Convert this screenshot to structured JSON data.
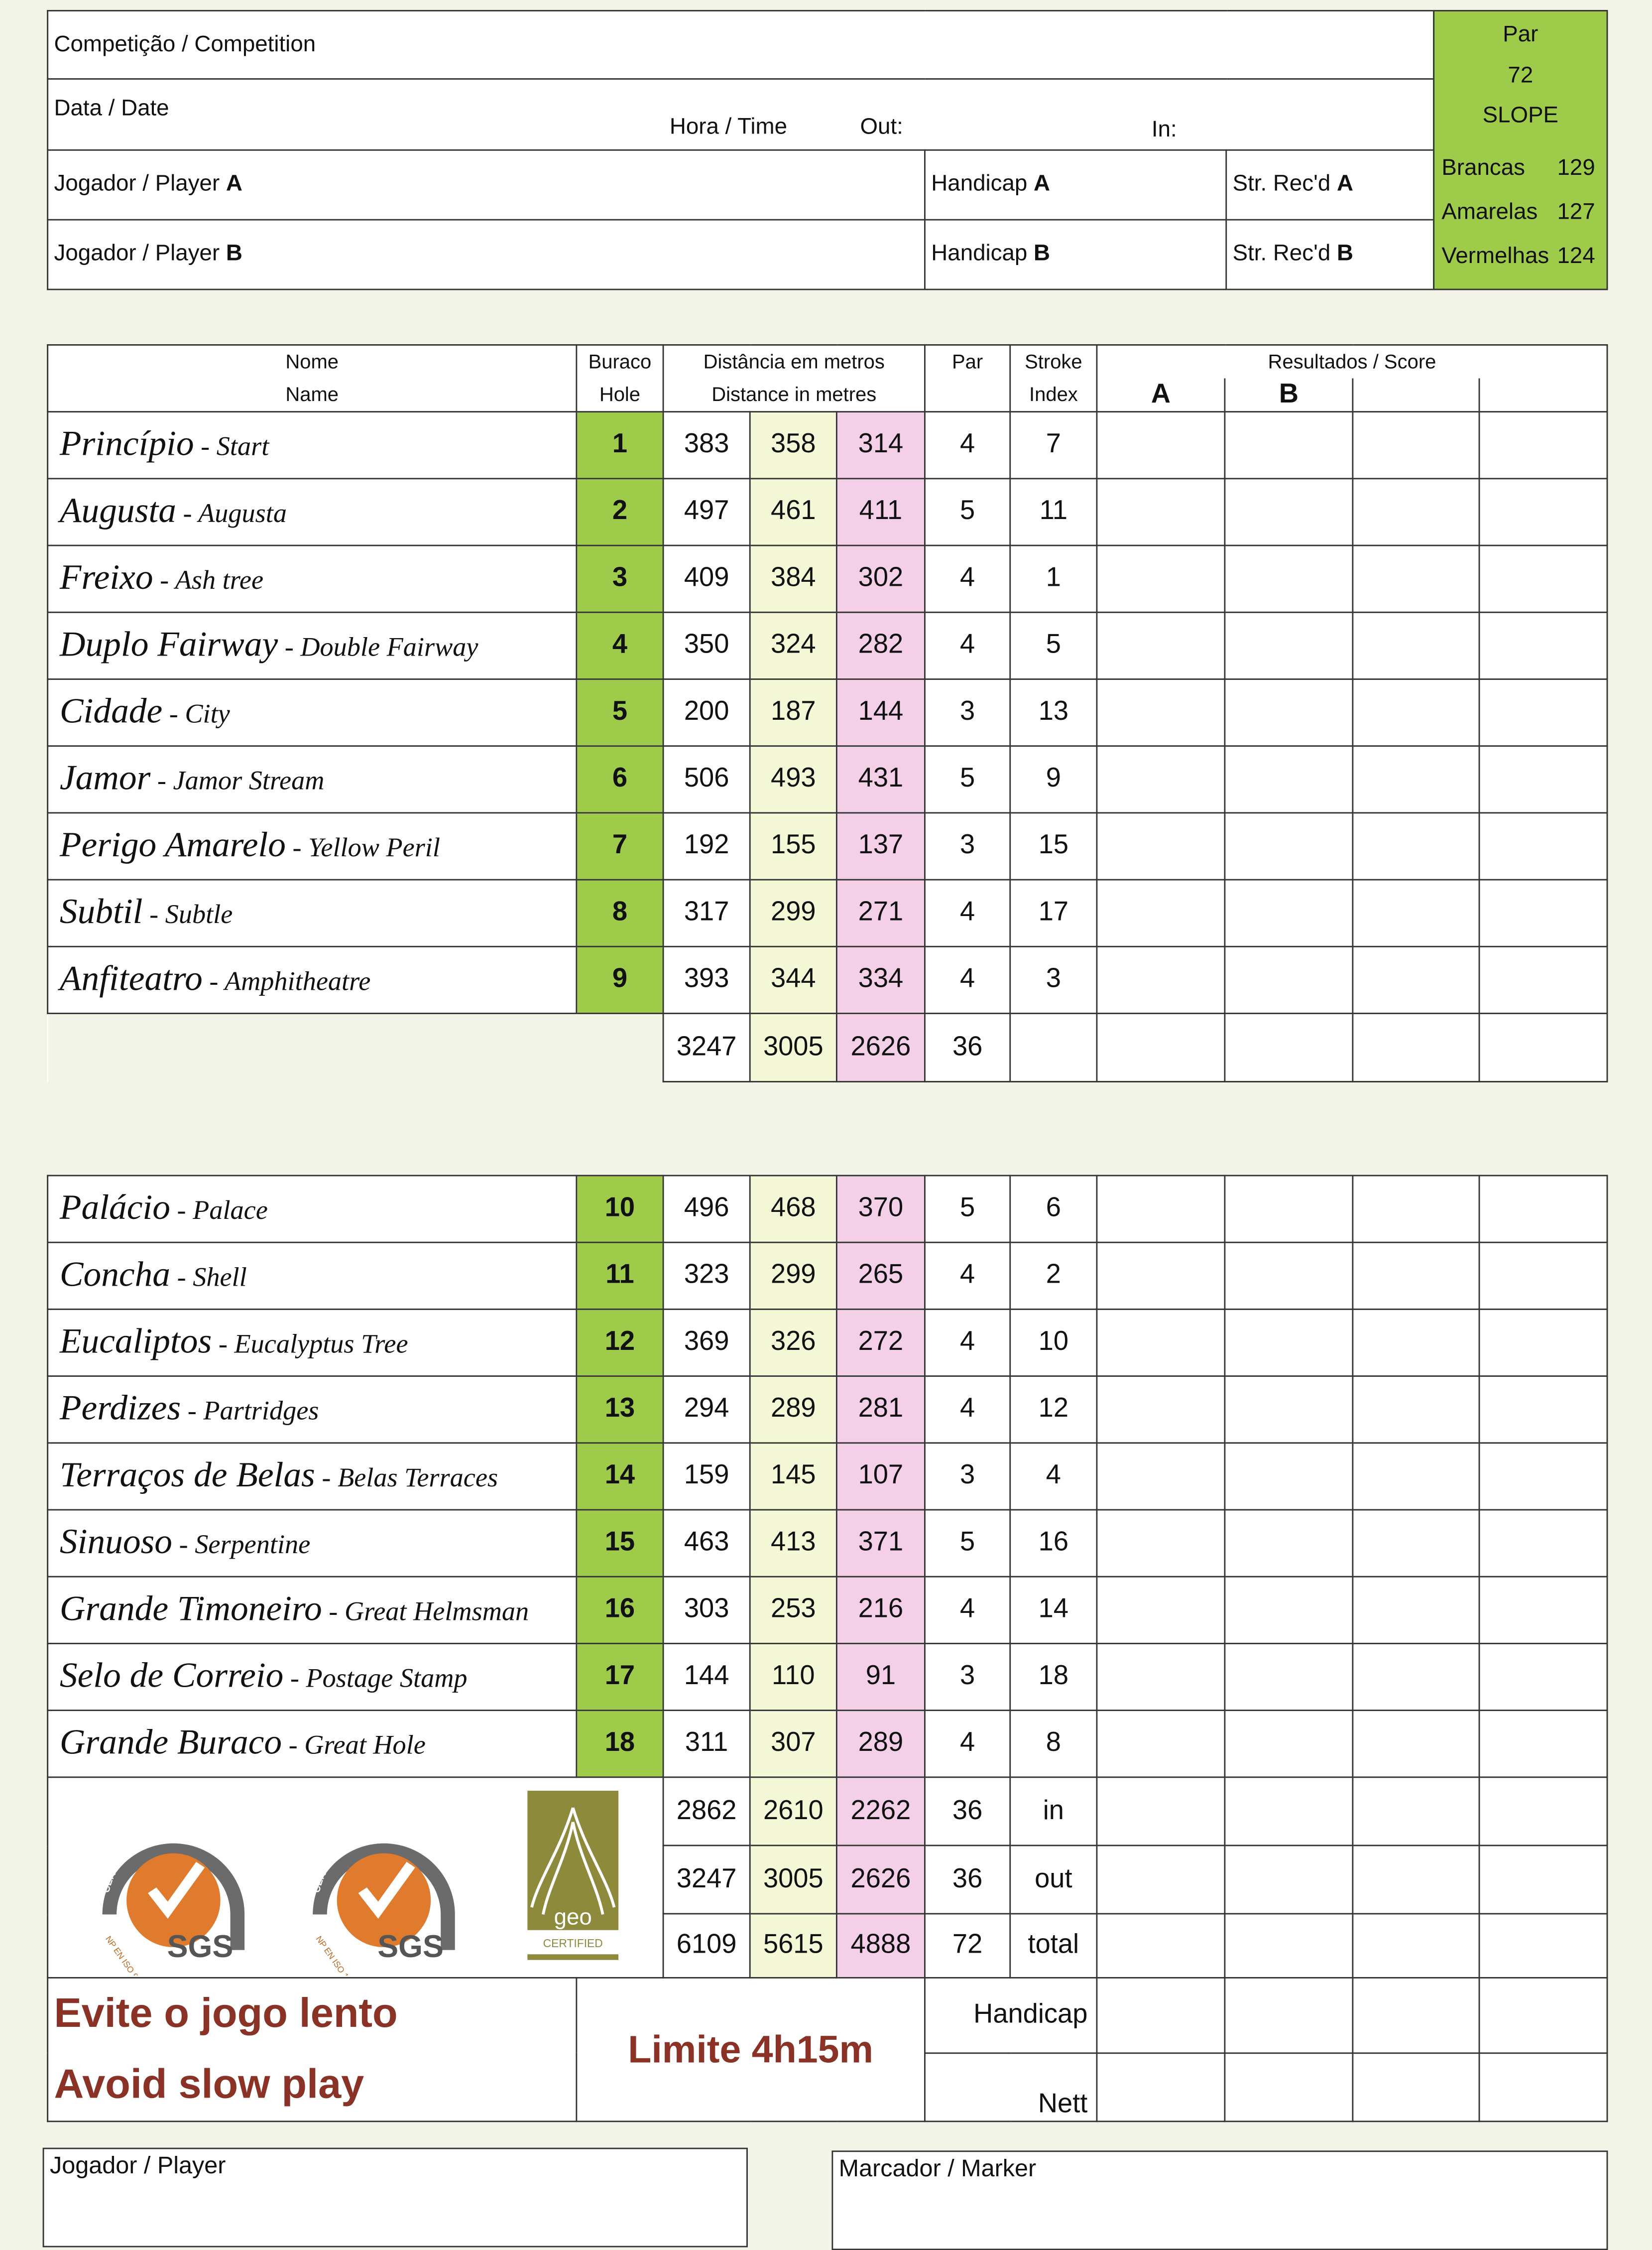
{
  "header": {
    "competition": "Competição / Competition",
    "date": "Data / Date",
    "time": "Hora / Time",
    "out": "Out:",
    "in": "In:",
    "player_a": "Jogador / Player ",
    "player_a_letter": "A",
    "player_b": "Jogador / Player ",
    "player_b_letter": "B",
    "handicap_a": "Handicap ",
    "handicap_a_letter": "A",
    "handicap_b": "Handicap ",
    "handicap_b_letter": "B",
    "strrec_a": "Str. Rec'd ",
    "strrec_a_letter": "A",
    "strrec_b": "Str. Rec'd ",
    "strrec_b_letter": "B"
  },
  "slope": {
    "par_label": "Par",
    "par_value": "72",
    "slope_label": "SLOPE",
    "tees": [
      {
        "name": "Brancas",
        "value": "129"
      },
      {
        "name": "Amarelas",
        "value": "127"
      },
      {
        "name": "Vermelhas",
        "value": "124"
      }
    ]
  },
  "columns": {
    "name_pt": "Nome",
    "name_en": "Name",
    "hole_pt": "Buraco",
    "hole_en": "Hole",
    "dist_pt": "Distância em metros",
    "dist_en": "Distance in metres",
    "par": "Par",
    "si_1": "Stroke",
    "si_2": "Index",
    "score": "Resultados /  Score",
    "score_a": "A",
    "score_b": "B"
  },
  "holes": [
    {
      "pt": "Princípio",
      "en": "Start",
      "hole": "1",
      "white": "383",
      "yellow": "358",
      "red": "314",
      "par": "4",
      "si": "7"
    },
    {
      "pt": "Augusta",
      "en": "Augusta",
      "hole": "2",
      "white": "497",
      "yellow": "461",
      "red": "411",
      "par": "5",
      "si": "11"
    },
    {
      "pt": "Freixo",
      "en": "Ash tree",
      "hole": "3",
      "white": "409",
      "yellow": "384",
      "red": "302",
      "par": "4",
      "si": "1"
    },
    {
      "pt": "Duplo Fairway",
      "en": "Double Fairway",
      "hole": "4",
      "white": "350",
      "yellow": "324",
      "red": "282",
      "par": "4",
      "si": "5"
    },
    {
      "pt": "Cidade",
      "en": "City",
      "hole": "5",
      "white": "200",
      "yellow": "187",
      "red": "144",
      "par": "3",
      "si": "13"
    },
    {
      "pt": "Jamor",
      "en": "Jamor Stream",
      "hole": "6",
      "white": "506",
      "yellow": "493",
      "red": "431",
      "par": "5",
      "si": "9"
    },
    {
      "pt": "Perigo Amarelo",
      "en": "Yellow Peril",
      "hole": "7",
      "white": "192",
      "yellow": "155",
      "red": "137",
      "par": "3",
      "si": "15"
    },
    {
      "pt": "Subtil",
      "en": "Subtle",
      "hole": "8",
      "white": "317",
      "yellow": "299",
      "red": "271",
      "par": "4",
      "si": "17"
    },
    {
      "pt": "Anfiteatro",
      "en": "Amphitheatre",
      "hole": "9",
      "white": "393",
      "yellow": "344",
      "red": "334",
      "par": "4",
      "si": "3"
    },
    {
      "pt": "Palácio",
      "en": "Palace",
      "hole": "10",
      "white": "496",
      "yellow": "468",
      "red": "370",
      "par": "5",
      "si": "6"
    },
    {
      "pt": "Concha",
      "en": "Shell",
      "hole": "11",
      "white": "323",
      "yellow": "299",
      "red": "265",
      "par": "4",
      "si": "2"
    },
    {
      "pt": "Eucaliptos",
      "en": "Eucalyptus Tree",
      "hole": "12",
      "white": "369",
      "yellow": "326",
      "red": "272",
      "par": "4",
      "si": "10"
    },
    {
      "pt": "Perdizes",
      "en": "Partridges",
      "hole": "13",
      "white": "294",
      "yellow": "289",
      "red": "281",
      "par": "4",
      "si": "12"
    },
    {
      "pt": "Terraços de Belas",
      "en": "Belas Terraces",
      "hole": "14",
      "white": "159",
      "yellow": "145",
      "red": "107",
      "par": "3",
      "si": "4"
    },
    {
      "pt": "Sinuoso",
      "en": "Serpentine",
      "hole": "15",
      "white": "463",
      "yellow": "413",
      "red": "371",
      "par": "5",
      "si": "16"
    },
    {
      "pt": "Grande Timoneiro",
      "en": "Great Helmsman",
      "hole": "16",
      "white": "303",
      "yellow": "253",
      "red": "216",
      "par": "4",
      "si": "14"
    },
    {
      "pt": "Selo de Correio",
      "en": "Postage Stamp",
      "hole": "17",
      "white": "144",
      "yellow": "110",
      "red": "91",
      "par": "3",
      "si": "18"
    },
    {
      "pt": "Grande Buraco",
      "en": "Great Hole",
      "hole": "18",
      "white": "311",
      "yellow": "307",
      "red": "289",
      "par": "4",
      "si": "8"
    }
  ],
  "front_total": {
    "white": "3247",
    "yellow": "3005",
    "red": "2626",
    "par": "36"
  },
  "totals": [
    {
      "white": "2862",
      "yellow": "2610",
      "red": "2262",
      "par": "36",
      "label": "in"
    },
    {
      "white": "3247",
      "yellow": "3005",
      "red": "2626",
      "par": "36",
      "label": "out"
    },
    {
      "white": "6109",
      "yellow": "5615",
      "red": "4888",
      "par": "72",
      "label": "total"
    }
  ],
  "logos": {
    "sgs1_ring": "CERTIFICAÇÃO DE SISTEMAS",
    "sgs1_std": "NP EN ISO 9001:2008",
    "sgs1_brand": "SGS",
    "sgs2_ring": "CERTIFICAÇÃO DE SISTEMAS",
    "sgs2_std": "NP EN ISO 14001:2004",
    "sgs2_brand": "SGS",
    "geo_brand": "GEO",
    "geo_sub": "CERTIFIED"
  },
  "footer": {
    "slow_pt": "Evite o jogo lento",
    "slow_en": "Avoid slow play",
    "limit": "Limite 4h15m",
    "handicap": "Handicap",
    "nett": "Nett",
    "player_sig": "Jogador / Player",
    "marker_sig": "Marcador / Marker"
  },
  "colors": {
    "tee_white_bg": "#ffffff",
    "tee_yellow_bg": "#f5f8d6",
    "tee_red_bg": "#f3d0e8",
    "hole_bg": "#9fcb4b",
    "slow_play_text": "#8a3226"
  }
}
